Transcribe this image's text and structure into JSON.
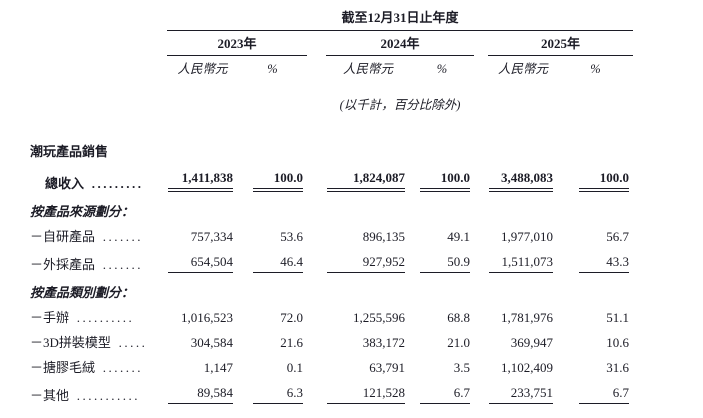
{
  "page": {
    "background": "#ffffff",
    "text_color": "#1c1c26"
  },
  "table": {
    "period_header": "截至12月31日止年度",
    "note": "(以千計，百分比除外)",
    "year_groups": [
      {
        "year": "2023年",
        "currency_header": "人民幣元",
        "percent_header": "%"
      },
      {
        "year": "2024年",
        "currency_header": "人民幣元",
        "percent_header": "%"
      },
      {
        "year": "2025年",
        "currency_header": "人民幣元",
        "percent_header": "%"
      }
    ],
    "rows": [
      {
        "type": "bold-section",
        "label": "潮玩產品銷售"
      },
      {
        "type": "data",
        "style": "total",
        "label": "總收入",
        "dots": ".........",
        "indent": true,
        "underline": "double",
        "values": [
          "1,411,838",
          "100.0",
          "1,824,087",
          "100.0",
          "3,488,083",
          "100.0"
        ]
      },
      {
        "type": "italic-section",
        "label": "按產品來源劃分："
      },
      {
        "type": "data",
        "label": "－自研產品",
        "dots": ".......",
        "values": [
          "757,334",
          "53.6",
          "896,135",
          "49.1",
          "1,977,010",
          "56.7"
        ]
      },
      {
        "type": "data",
        "label": "－外採產品",
        "dots": ".......",
        "underline": "single",
        "values": [
          "654,504",
          "46.4",
          "927,952",
          "50.9",
          "1,511,073",
          "43.3"
        ]
      },
      {
        "type": "italic-section",
        "label": "按產品類別劃分："
      },
      {
        "type": "data",
        "label": "－手辦",
        "dots": "..........",
        "values": [
          "1,016,523",
          "72.0",
          "1,255,596",
          "68.8",
          "1,781,976",
          "51.1"
        ]
      },
      {
        "type": "data",
        "label": "－3D拼裝模型",
        "dots": ".....",
        "values": [
          "304,584",
          "21.6",
          "383,172",
          "21.0",
          "369,947",
          "10.6"
        ]
      },
      {
        "type": "data",
        "label": "－搪膠毛絨",
        "dots": ".......",
        "values": [
          "1,147",
          "0.1",
          "63,791",
          "3.5",
          "1,102,409",
          "31.6"
        ]
      },
      {
        "type": "data",
        "label": "－其他",
        "dots": "...........",
        "underline": "single",
        "values": [
          "89,584",
          "6.3",
          "121,528",
          "6.7",
          "233,751",
          "6.7"
        ]
      }
    ]
  }
}
